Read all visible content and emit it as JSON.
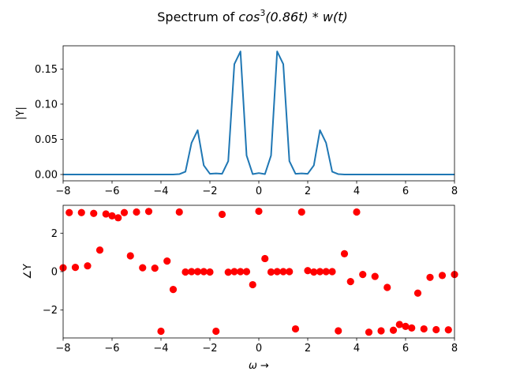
{
  "title_prefix": "Spectrum of ",
  "title_math": "cos",
  "title_power": "3",
  "title_rest": "(0.86t) * w(t)",
  "colors": {
    "magnitude_line": "#1f77b4",
    "phase_points": "#ff0000"
  },
  "chart_data": [
    {
      "type": "line",
      "ylabel": "|Y|",
      "xlim": [
        -8,
        8
      ],
      "ylim": [
        -0.009,
        0.183
      ],
      "xticks": [
        -8,
        -6,
        -4,
        -2,
        0,
        2,
        4,
        6,
        8
      ],
      "xtick_labels": [
        "−8",
        "−6",
        "−4",
        "−2",
        "0",
        "2",
        "4",
        "6",
        "8"
      ],
      "yticks": [
        0.0,
        0.05,
        0.1,
        0.15
      ],
      "ytick_labels": [
        "0.00",
        "0.05",
        "0.10",
        "0.15"
      ],
      "grid": false,
      "x": [
        -8.0,
        -7.75,
        -7.5,
        -7.25,
        -7.0,
        -6.75,
        -6.5,
        -6.25,
        -6.0,
        -5.75,
        -5.5,
        -5.25,
        -5.0,
        -4.75,
        -4.5,
        -4.25,
        -4.0,
        -3.75,
        -3.5,
        -3.25,
        -3.0,
        -2.75,
        -2.5,
        -2.25,
        -2.0,
        -1.75,
        -1.5,
        -1.25,
        -1.0,
        -0.75,
        -0.5,
        -0.25,
        0.0,
        0.25,
        0.5,
        0.75,
        1.0,
        1.25,
        1.5,
        1.75,
        2.0,
        2.25,
        2.5,
        2.75,
        3.0,
        3.25,
        3.5,
        3.75,
        4.0,
        4.25,
        4.5,
        4.75,
        5.0,
        5.25,
        5.5,
        5.75,
        6.0,
        6.25,
        6.5,
        6.75,
        7.0,
        7.25,
        7.5,
        7.75,
        8.0
      ],
      "y": [
        0.0,
        0.0,
        0.0,
        0.0,
        0.0,
        0.0,
        0.0,
        0.0,
        0.0,
        0.0,
        0.0,
        0.0,
        0.0,
        0.0,
        0.0,
        0.0,
        0.0,
        0.0,
        0.0,
        0.0005,
        0.004,
        0.045,
        0.063,
        0.013,
        0.001,
        0.0015,
        0.001,
        0.019,
        0.157,
        0.175,
        0.027,
        0.0005,
        0.002,
        0.0005,
        0.027,
        0.175,
        0.157,
        0.019,
        0.001,
        0.0015,
        0.001,
        0.013,
        0.063,
        0.045,
        0.004,
        0.0005,
        0.0,
        0.0,
        0.0,
        0.0,
        0.0,
        0.0,
        0.0,
        0.0,
        0.0,
        0.0,
        0.0,
        0.0,
        0.0,
        0.0,
        0.0,
        0.0,
        0.0,
        0.0,
        0.0
      ]
    },
    {
      "type": "scatter",
      "ylabel": "∠Y",
      "xlabel_math": "ω",
      "xlabel_arrow": " →",
      "xlim": [
        -8,
        8
      ],
      "ylim": [
        -3.45,
        3.45
      ],
      "xticks": [
        -8,
        -6,
        -4,
        -2,
        0,
        2,
        4,
        6,
        8
      ],
      "xtick_labels": [
        "−8",
        "−6",
        "−4",
        "−2",
        "0",
        "2",
        "4",
        "6",
        "8"
      ],
      "yticks": [
        -2,
        0,
        2
      ],
      "ytick_labels": [
        "−2",
        "0",
        "2"
      ],
      "grid": false,
      "x": [
        -8.0,
        -7.75,
        -7.5,
        -7.25,
        -7.0,
        -6.75,
        -6.5,
        -6.25,
        -6.0,
        -5.75,
        -5.5,
        -5.25,
        -5.0,
        -4.75,
        -4.5,
        -4.25,
        -4.0,
        -3.75,
        -3.5,
        -3.25,
        -3.0,
        -2.75,
        -2.5,
        -2.25,
        -2.0,
        -1.75,
        -1.5,
        -1.25,
        -1.0,
        -0.75,
        -0.5,
        -0.25,
        0.0,
        0.25,
        0.5,
        0.75,
        1.0,
        1.25,
        1.5,
        1.75,
        2.0,
        2.25,
        2.5,
        2.75,
        3.0,
        3.25,
        3.5,
        3.75,
        4.0,
        4.25,
        4.5,
        4.75,
        5.0,
        5.25,
        5.5,
        5.75,
        6.0,
        6.25,
        6.5,
        6.75,
        7.0,
        7.25,
        7.5,
        7.75,
        8.0
      ],
      "y": [
        0.2,
        3.07,
        0.22,
        3.07,
        0.3,
        3.03,
        1.12,
        3.0,
        2.9,
        2.8,
        3.07,
        0.82,
        3.1,
        0.2,
        3.13,
        0.18,
        -3.1,
        0.55,
        -0.93,
        3.1,
        -0.02,
        0.0,
        0.0,
        0.0,
        -0.02,
        -3.1,
        2.98,
        -0.03,
        0.0,
        0.0,
        0.0,
        -0.68,
        3.14,
        0.68,
        -0.02,
        0.0,
        0.0,
        0.0,
        -2.98,
        3.1,
        0.05,
        -0.02,
        0.0,
        0.0,
        0.0,
        -3.08,
        0.93,
        -0.52,
        3.1,
        -0.15,
        -3.15,
        -0.25,
        -3.08,
        -0.82,
        -3.05,
        -2.75,
        -2.85,
        -2.93,
        -1.12,
        -2.98,
        -0.3,
        -3.02,
        -0.2,
        -3.03,
        -0.15
      ]
    }
  ]
}
